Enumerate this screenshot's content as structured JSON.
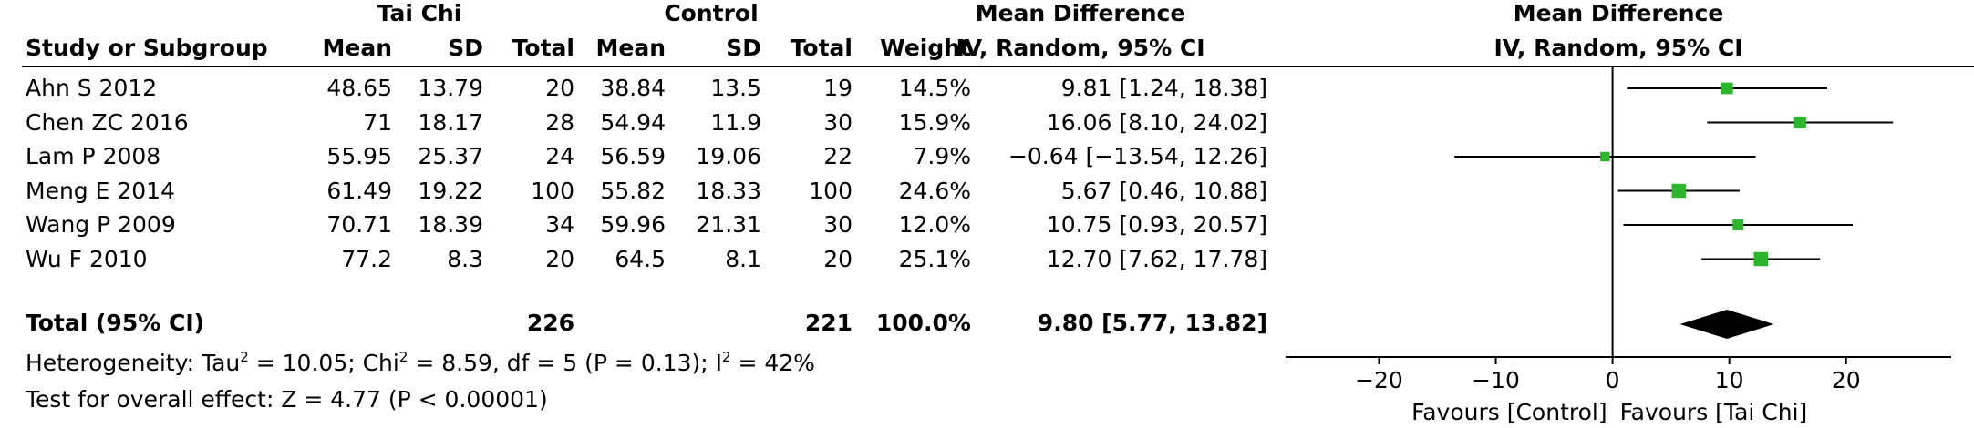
{
  "chart_data": {
    "type": "forest",
    "group_labels": {
      "experimental": "Tai Chi",
      "control": "Control"
    },
    "columns": {
      "study": "Study or Subgroup",
      "mean_e": "Mean",
      "sd_e": "SD",
      "total_e": "Total",
      "mean_c": "Mean",
      "sd_c": "SD",
      "total_c": "Total",
      "weight": "Weight",
      "effect_title": "Mean Difference",
      "effect_method": "IV, Random, 95% CI"
    },
    "studies": [
      {
        "name": "Ahn S 2012",
        "mean_e": "48.65",
        "sd_e": "13.79",
        "n_e": "20",
        "mean_c": "38.84",
        "sd_c": "13.5",
        "n_c": "19",
        "weight": "14.5%",
        "ci_text": "9.81 [1.24, 18.38]",
        "md": 9.81,
        "lo": 1.24,
        "hi": 18.38,
        "w": 14.5
      },
      {
        "name": "Chen ZC 2016",
        "mean_e": "71",
        "sd_e": "18.17",
        "n_e": "28",
        "mean_c": "54.94",
        "sd_c": "11.9",
        "n_c": "30",
        "weight": "15.9%",
        "ci_text": "16.06 [8.10, 24.02]",
        "md": 16.06,
        "lo": 8.1,
        "hi": 24.02,
        "w": 15.9
      },
      {
        "name": "Lam P 2008",
        "mean_e": "55.95",
        "sd_e": "25.37",
        "n_e": "24",
        "mean_c": "56.59",
        "sd_c": "19.06",
        "n_c": "22",
        "weight": "7.9%",
        "ci_text": "−0.64 [−13.54, 12.26]",
        "md": -0.64,
        "lo": -13.54,
        "hi": 12.26,
        "w": 7.9
      },
      {
        "name": "Meng E 2014",
        "mean_e": "61.49",
        "sd_e": "19.22",
        "n_e": "100",
        "mean_c": "55.82",
        "sd_c": "18.33",
        "n_c": "100",
        "weight": "24.6%",
        "ci_text": "5.67 [0.46, 10.88]",
        "md": 5.67,
        "lo": 0.46,
        "hi": 10.88,
        "w": 24.6
      },
      {
        "name": "Wang P 2009",
        "mean_e": "70.71",
        "sd_e": "18.39",
        "n_e": "34",
        "mean_c": "59.96",
        "sd_c": "21.31",
        "n_c": "30",
        "weight": "12.0%",
        "ci_text": "10.75 [0.93, 20.57]",
        "md": 10.75,
        "lo": 0.93,
        "hi": 20.57,
        "w": 12.0
      },
      {
        "name": "Wu F 2010",
        "mean_e": "77.2",
        "sd_e": "8.3",
        "n_e": "20",
        "mean_c": "64.5",
        "sd_c": "8.1",
        "n_c": "20",
        "weight": "25.1%",
        "ci_text": "12.70 [7.62, 17.78]",
        "md": 12.7,
        "lo": 7.62,
        "hi": 17.78,
        "w": 25.1
      }
    ],
    "total": {
      "label": "Total (95% CI)",
      "n_e": "226",
      "n_c": "221",
      "weight": "100.0%",
      "ci_text": "9.80 [5.77, 13.82]",
      "md": 9.8,
      "lo": 5.77,
      "hi": 13.82
    },
    "heterogeneity": {
      "prefix": "Heterogeneity: Tau",
      "tau2": " = 10.05; Chi",
      "chi2": " = 8.59, df = 5 (P = 0.13); I",
      "i2": " = 42%",
      "sup": "2"
    },
    "overall_effect": "Test for overall effect: Z = 4.77 (P < 0.00001)",
    "plot_title": "Mean Difference",
    "plot_method": "IV, Random, 95% CI",
    "axis": {
      "xlim": [
        -28,
        29
      ],
      "ticks": [
        -20,
        -10,
        0,
        10,
        20
      ],
      "tick_labels": [
        "−20",
        "−10",
        "0",
        "10",
        "20"
      ]
    },
    "favours_left": "Favours [Control]",
    "favours_right": "Favours [Tai Chi]",
    "colors": {
      "study_marker": "#2db52d",
      "summary": "#000000"
    }
  }
}
